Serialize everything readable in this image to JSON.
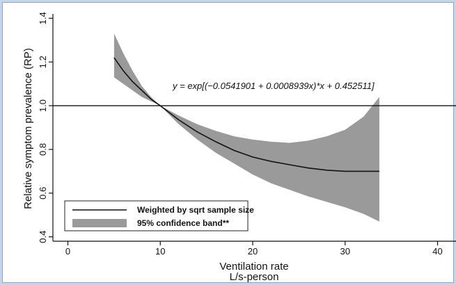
{
  "chart_data": {
    "type": "line",
    "title": "",
    "xlabel": "Ventilation rate",
    "xlabel_sub": "L/s-person",
    "ylabel": "Relative symptom prevalence (RP)",
    "xlim": [
      -1,
      40.5
    ],
    "ylim": [
      0.38,
      1.42
    ],
    "xticks": [
      0,
      10,
      20,
      30,
      40
    ],
    "yticks": [
      0.4,
      0.6,
      0.8,
      1.0,
      1.2,
      1.4
    ],
    "ytick_labels": [
      "0.4",
      "0.6",
      "0.8",
      "1.0",
      "1.2",
      "1.4"
    ],
    "reference_line": 1.0,
    "equation": "y = exp[(−0.0541901 + 0.0008939x)*x + 0.452511]",
    "legend_position": "bottom-left",
    "series": [
      {
        "name": "Weighted by sqrt sample size",
        "type": "line",
        "color": "#111111",
        "x": [
          5,
          6,
          7,
          8,
          9,
          10,
          12,
          14,
          16,
          18,
          20,
          22,
          24,
          26,
          28,
          30,
          32,
          33.7
        ],
        "y": [
          1.22,
          1.16,
          1.11,
          1.07,
          1.03,
          1.0,
          0.935,
          0.88,
          0.835,
          0.795,
          0.765,
          0.745,
          0.73,
          0.715,
          0.705,
          0.7,
          0.7,
          0.7
        ]
      },
      {
        "name": "95%  confidence band**",
        "type": "band",
        "color": "#9a9a9a",
        "x": [
          5,
          6,
          7,
          8,
          9,
          10,
          12,
          14,
          16,
          18,
          20,
          22,
          24,
          26,
          28,
          30,
          32,
          33.7
        ],
        "upper": [
          1.33,
          1.24,
          1.16,
          1.09,
          1.04,
          1.0,
          0.955,
          0.915,
          0.885,
          0.86,
          0.845,
          0.835,
          0.83,
          0.84,
          0.86,
          0.89,
          0.95,
          1.04
        ],
        "lower": [
          1.13,
          1.1,
          1.07,
          1.04,
          1.02,
          1.0,
          0.915,
          0.845,
          0.785,
          0.735,
          0.685,
          0.645,
          0.615,
          0.585,
          0.56,
          0.535,
          0.505,
          0.47
        ]
      }
    ]
  }
}
